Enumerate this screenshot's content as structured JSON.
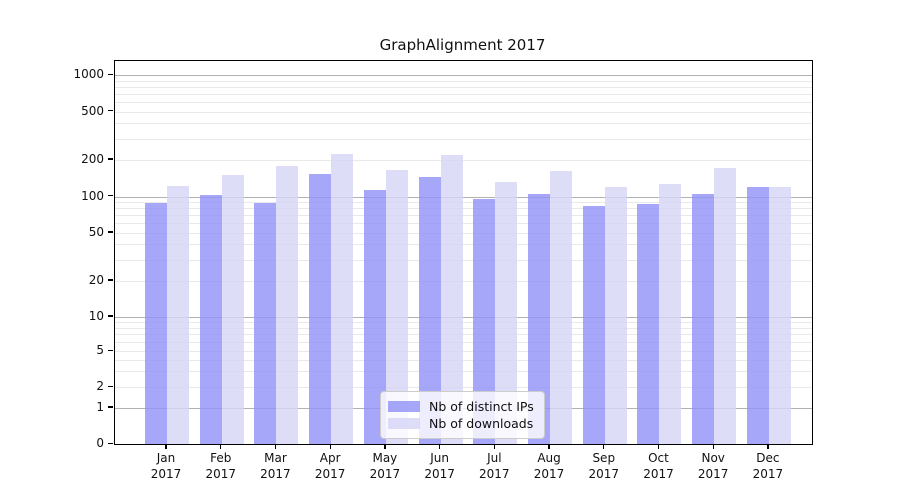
{
  "title": "GraphAlignment 2017",
  "colors": {
    "ips_bar": "rgba(148,148,248,0.82)",
    "downloads_bar": "rgba(213,213,247,0.82)",
    "major_grid": "#b2b2b2",
    "minor_grid": "#e9e9e9",
    "axis": "#000000",
    "text": "#111111",
    "legend_border": "#cccccc"
  },
  "legend": {
    "items": [
      {
        "label": "Nb of distinct IPs",
        "color_key": "ips_bar"
      },
      {
        "label": "Nb of downloads",
        "color_key": "downloads_bar"
      }
    ]
  },
  "y_axis": {
    "tick_labels": [
      "1000",
      "500",
      "200",
      "100",
      "50",
      "20",
      "10",
      "5",
      "2",
      "1",
      "0"
    ],
    "tick_values": [
      1000,
      500,
      200,
      100,
      50,
      20,
      10,
      5,
      2,
      1,
      0
    ],
    "major_grid_values": [
      1,
      10,
      100,
      1000
    ],
    "minor_grid_values": [
      2,
      3,
      4,
      5,
      6,
      7,
      8,
      9,
      20,
      30,
      40,
      50,
      60,
      70,
      80,
      90,
      200,
      300,
      400,
      500,
      600,
      700,
      800,
      900
    ]
  },
  "x_axis": {
    "months": [
      "Jan",
      "Feb",
      "Mar",
      "Apr",
      "May",
      "Jun",
      "Jul",
      "Aug",
      "Sep",
      "Oct",
      "Nov",
      "Dec"
    ],
    "year": "2017"
  },
  "chart_data": {
    "type": "bar",
    "title": "GraphAlignment 2017",
    "categories": [
      "Jan 2017",
      "Feb 2017",
      "Mar 2017",
      "Apr 2017",
      "May 2017",
      "Jun 2017",
      "Jul 2017",
      "Aug 2017",
      "Sep 2017",
      "Oct 2017",
      "Nov 2017",
      "Dec 2017"
    ],
    "series": [
      {
        "name": "Nb of distinct IPs",
        "values": [
          88,
          102,
          89,
          154,
          114,
          146,
          95,
          104,
          84,
          87,
          105,
          120
        ]
      },
      {
        "name": "Nb of downloads",
        "values": [
          122,
          150,
          180,
          225,
          164,
          221,
          131,
          163,
          120,
          126,
          173,
          120
        ]
      }
    ],
    "yscale": "symlog",
    "yticks": [
      0,
      1,
      2,
      5,
      10,
      20,
      50,
      100,
      200,
      500,
      1000
    ],
    "ylim": [
      0,
      1000
    ],
    "xlabel": "",
    "ylabel": "",
    "grid": true,
    "legend_position": "lower center"
  }
}
